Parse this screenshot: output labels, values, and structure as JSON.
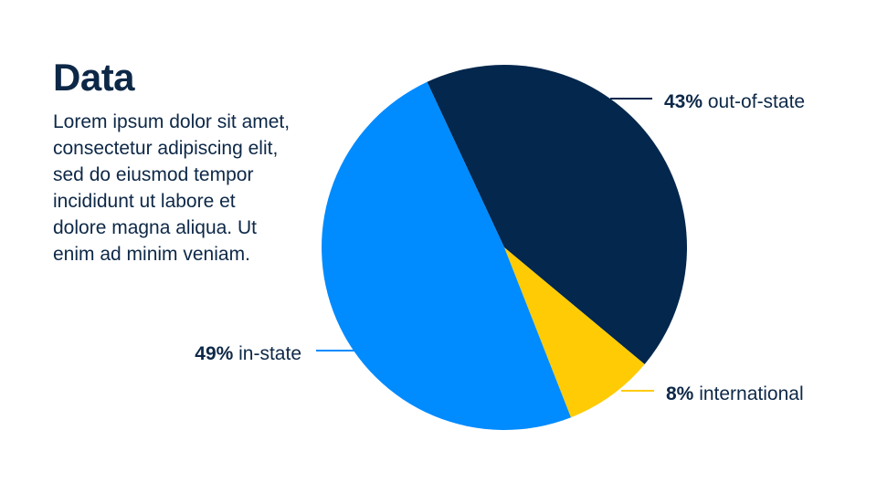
{
  "slide": {
    "title": "Data",
    "body": "Lorem ipsum dolor sit amet, consectetur adipiscing elit, sed do eiusmod tempor incididunt ut labore et dolore magna aliqua. Ut enim ad minim veniam."
  },
  "chart_data": {
    "type": "pie",
    "slices": [
      {
        "label": "out-of-state",
        "value": 43,
        "display": "43%",
        "color": "#03274d"
      },
      {
        "label": "international",
        "value": 8,
        "display": "8%",
        "color": "#ffcb05"
      },
      {
        "label": "in-state",
        "value": 49,
        "display": "49%",
        "color": "#008bff"
      }
    ]
  }
}
